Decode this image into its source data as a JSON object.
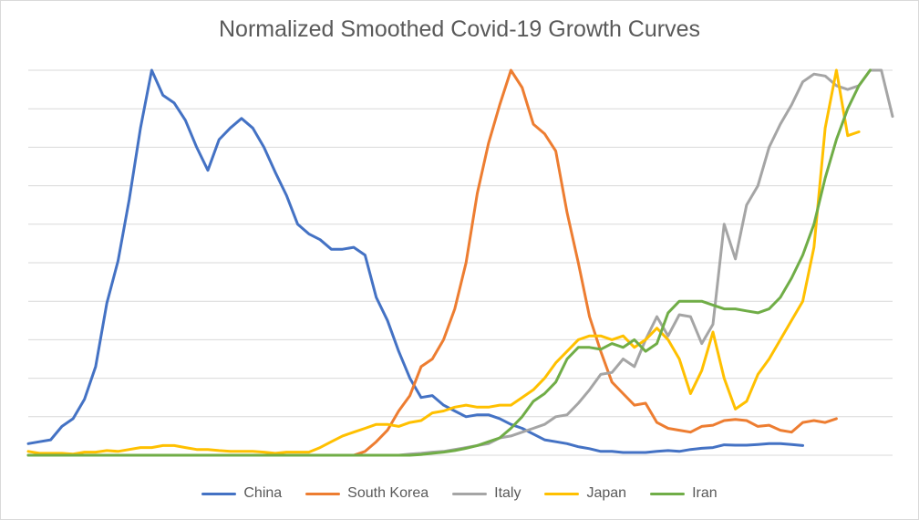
{
  "chart_data": {
    "type": "line",
    "title": "Normalized Smoothed Covid-19 Growth Curves",
    "xlabel": "",
    "ylabel": "",
    "ylim": [
      0,
      1
    ],
    "grid": true,
    "legend_position": "bottom",
    "series": [
      {
        "name": "China",
        "color": "#4472C4",
        "values": [
          0.03,
          0.035,
          0.04,
          0.075,
          0.095,
          0.145,
          0.23,
          0.395,
          0.505,
          0.665,
          0.85,
          1.0,
          0.935,
          0.915,
          0.87,
          0.8,
          0.74,
          0.82,
          0.85,
          0.875,
          0.85,
          0.8,
          0.735,
          0.675,
          0.6,
          0.575,
          0.56,
          0.535,
          0.535,
          0.54,
          0.52,
          0.41,
          0.35,
          0.27,
          0.2,
          0.15,
          0.155,
          0.13,
          0.115,
          0.1,
          0.105,
          0.105,
          0.095,
          0.08,
          0.07,
          0.055,
          0.04,
          0.035,
          0.03,
          0.022,
          0.017,
          0.01,
          0.01,
          0.007,
          0.007,
          0.007,
          0.01,
          0.012,
          0.01,
          0.015,
          0.018,
          0.02,
          0.027,
          0.026,
          0.026,
          0.028,
          0.03,
          0.03,
          0.028,
          0.025
        ]
      },
      {
        "name": "South Korea",
        "color": "#ED7D31",
        "values": [
          0,
          0,
          0,
          0,
          0,
          0,
          0,
          0,
          0,
          0,
          0,
          0,
          0,
          0,
          0,
          0,
          0,
          0,
          0,
          0,
          0,
          0,
          0,
          0,
          0,
          0,
          0,
          0,
          0,
          0,
          0.01,
          0.035,
          0.065,
          0.115,
          0.155,
          0.23,
          0.25,
          0.3,
          0.38,
          0.5,
          0.68,
          0.81,
          0.91,
          1.0,
          0.955,
          0.86,
          0.835,
          0.79,
          0.63,
          0.5,
          0.36,
          0.27,
          0.19,
          0.16,
          0.13,
          0.135,
          0.085,
          0.07,
          0.065,
          0.06,
          0.075,
          0.078,
          0.09,
          0.093,
          0.09,
          0.075,
          0.078,
          0.065,
          0.06,
          0.085,
          0.09,
          0.085,
          0.095
        ]
      },
      {
        "name": "Italy",
        "color": "#A5A5A5",
        "values": [
          0,
          0,
          0,
          0,
          0,
          0,
          0,
          0,
          0,
          0,
          0,
          0,
          0,
          0,
          0,
          0,
          0,
          0,
          0,
          0,
          0,
          0,
          0,
          0,
          0,
          0,
          0,
          0,
          0,
          0,
          0,
          0,
          0,
          0,
          0.003,
          0.005,
          0.008,
          0.01,
          0.015,
          0.02,
          0.025,
          0.03,
          0.045,
          0.05,
          0.06,
          0.07,
          0.08,
          0.1,
          0.105,
          0.135,
          0.17,
          0.21,
          0.215,
          0.25,
          0.23,
          0.3,
          0.36,
          0.31,
          0.365,
          0.36,
          0.29,
          0.34,
          0.6,
          0.51,
          0.65,
          0.7,
          0.8,
          0.86,
          0.91,
          0.97,
          0.99,
          0.985,
          0.96,
          0.95,
          0.96,
          1.0,
          1.0,
          0.88
        ]
      },
      {
        "name": "Japan",
        "color": "#FFC000",
        "values": [
          0.01,
          0.005,
          0.005,
          0.005,
          0.003,
          0.008,
          0.008,
          0.012,
          0.01,
          0.015,
          0.02,
          0.02,
          0.025,
          0.025,
          0.02,
          0.015,
          0.015,
          0.012,
          0.01,
          0.01,
          0.01,
          0.008,
          0.005,
          0.008,
          0.008,
          0.008,
          0.02,
          0.035,
          0.05,
          0.06,
          0.07,
          0.08,
          0.08,
          0.075,
          0.085,
          0.09,
          0.11,
          0.115,
          0.125,
          0.13,
          0.125,
          0.125,
          0.13,
          0.13,
          0.15,
          0.17,
          0.2,
          0.24,
          0.27,
          0.3,
          0.31,
          0.31,
          0.3,
          0.31,
          0.28,
          0.3,
          0.33,
          0.3,
          0.25,
          0.16,
          0.22,
          0.32,
          0.2,
          0.12,
          0.14,
          0.21,
          0.25,
          0.3,
          0.35,
          0.4,
          0.54,
          0.85,
          1.0,
          0.83,
          0.84
        ]
      },
      {
        "name": "Iran",
        "color": "#70AD47",
        "values": [
          0,
          0,
          0,
          0,
          0,
          0,
          0,
          0,
          0,
          0,
          0,
          0,
          0,
          0,
          0,
          0,
          0,
          0,
          0,
          0,
          0,
          0,
          0,
          0,
          0,
          0,
          0,
          0,
          0,
          0,
          0,
          0,
          0,
          0,
          0,
          0.002,
          0.005,
          0.008,
          0.012,
          0.018,
          0.025,
          0.035,
          0.045,
          0.07,
          0.1,
          0.14,
          0.16,
          0.19,
          0.25,
          0.28,
          0.28,
          0.275,
          0.29,
          0.28,
          0.3,
          0.27,
          0.29,
          0.37,
          0.4,
          0.4,
          0.4,
          0.39,
          0.38,
          0.38,
          0.375,
          0.37,
          0.38,
          0.41,
          0.46,
          0.52,
          0.6,
          0.72,
          0.82,
          0.9,
          0.96,
          1.0
        ]
      }
    ]
  }
}
